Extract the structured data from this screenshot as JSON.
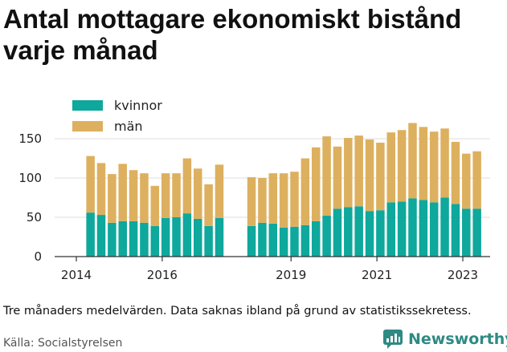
{
  "title": "Antal mottagare ekonomiskt bistånd varje månad",
  "note": "Tre månaders medelvärden. Data saknas ibland på grund av statistikssekretess.",
  "source": "Källa: Socialstyrelsen",
  "brand": {
    "name": "Newsworthy"
  },
  "colors": {
    "kvinnor": "#0ea89c",
    "man": "#ddb05f",
    "grid": "#dddddd",
    "brand": "#2e8a83"
  },
  "chart_data": {
    "type": "bar",
    "stacked": true,
    "title": "Antal mottagare ekonomiskt bistånd varje månad",
    "ylim": [
      0,
      175
    ],
    "yticks": [
      0,
      50,
      100,
      150
    ],
    "xticks": [
      {
        "label": "2014",
        "x": 2014.0
      },
      {
        "label": "2016",
        "x": 2016.0
      },
      {
        "label": "2019",
        "x": 2019.0
      },
      {
        "label": "2021",
        "x": 2021.0
      },
      {
        "label": "2023",
        "x": 2023.0
      }
    ],
    "legend": {
      "placement": "top-left"
    },
    "series": [
      {
        "name": "kvinnor",
        "color": "#0ea89c"
      },
      {
        "name": "män",
        "color": "#ddb05f"
      }
    ],
    "bars": [
      {
        "x": 2014.33,
        "kvinnor": 56,
        "man": 72
      },
      {
        "x": 2014.58,
        "kvinnor": 53,
        "man": 66
      },
      {
        "x": 2014.83,
        "kvinnor": 43,
        "man": 62
      },
      {
        "x": 2015.08,
        "kvinnor": 45,
        "man": 73
      },
      {
        "x": 2015.33,
        "kvinnor": 45,
        "man": 65
      },
      {
        "x": 2015.58,
        "kvinnor": 43,
        "man": 63
      },
      {
        "x": 2015.83,
        "kvinnor": 39,
        "man": 51
      },
      {
        "x": 2016.08,
        "kvinnor": 49,
        "man": 57
      },
      {
        "x": 2016.33,
        "kvinnor": 50,
        "man": 56
      },
      {
        "x": 2016.58,
        "kvinnor": 55,
        "man": 70
      },
      {
        "x": 2016.83,
        "kvinnor": 48,
        "man": 64
      },
      {
        "x": 2017.08,
        "kvinnor": 39,
        "man": 53
      },
      {
        "x": 2017.33,
        "kvinnor": 49,
        "man": 68
      },
      {
        "x": 2018.08,
        "kvinnor": 39,
        "man": 62
      },
      {
        "x": 2018.33,
        "kvinnor": 43,
        "man": 57
      },
      {
        "x": 2018.58,
        "kvinnor": 42,
        "man": 64
      },
      {
        "x": 2018.83,
        "kvinnor": 37,
        "man": 69
      },
      {
        "x": 2019.08,
        "kvinnor": 38,
        "man": 70
      },
      {
        "x": 2019.33,
        "kvinnor": 40,
        "man": 85
      },
      {
        "x": 2019.58,
        "kvinnor": 45,
        "man": 94
      },
      {
        "x": 2019.83,
        "kvinnor": 52,
        "man": 101
      },
      {
        "x": 2020.08,
        "kvinnor": 61,
        "man": 79
      },
      {
        "x": 2020.33,
        "kvinnor": 63,
        "man": 88
      },
      {
        "x": 2020.58,
        "kvinnor": 64,
        "man": 90
      },
      {
        "x": 2020.83,
        "kvinnor": 58,
        "man": 91
      },
      {
        "x": 2021.08,
        "kvinnor": 59,
        "man": 86
      },
      {
        "x": 2021.33,
        "kvinnor": 69,
        "man": 89
      },
      {
        "x": 2021.58,
        "kvinnor": 70,
        "man": 91
      },
      {
        "x": 2021.83,
        "kvinnor": 74,
        "man": 96
      },
      {
        "x": 2022.08,
        "kvinnor": 72,
        "man": 93
      },
      {
        "x": 2022.33,
        "kvinnor": 69,
        "man": 90
      },
      {
        "x": 2022.58,
        "kvinnor": 75,
        "man": 88
      },
      {
        "x": 2022.83,
        "kvinnor": 67,
        "man": 79
      },
      {
        "x": 2023.08,
        "kvinnor": 61,
        "man": 70
      },
      {
        "x": 2023.33,
        "kvinnor": 61,
        "man": 73
      }
    ]
  }
}
